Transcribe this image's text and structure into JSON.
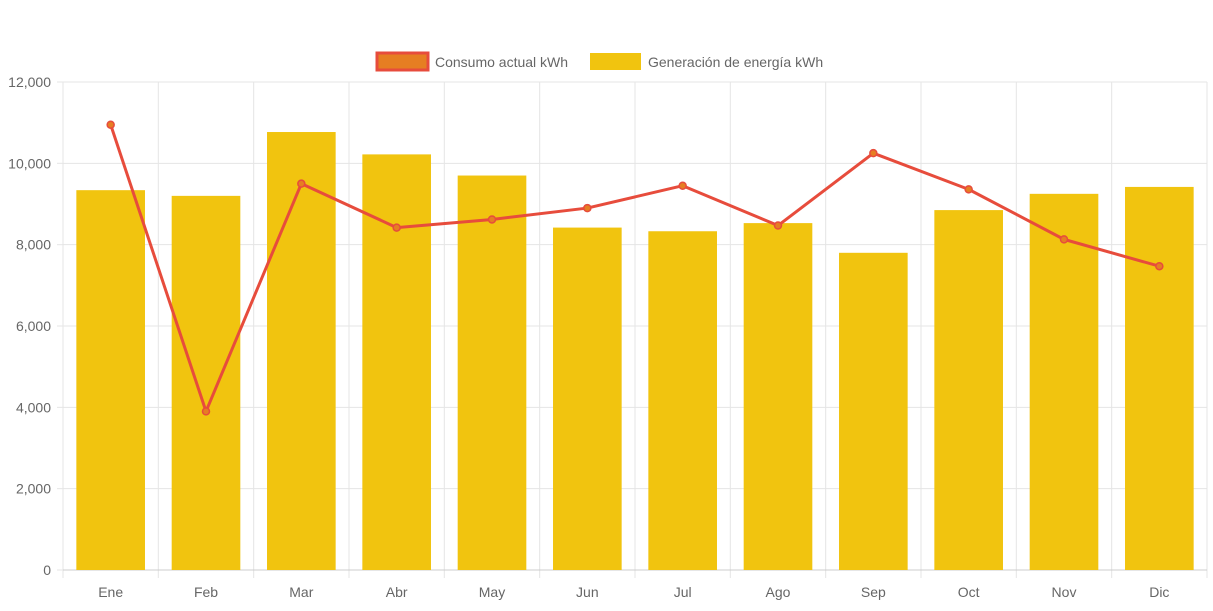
{
  "chart_data": {
    "type": "bar",
    "categories": [
      "Ene",
      "Feb",
      "Mar",
      "Abr",
      "May",
      "Jun",
      "Jul",
      "Ago",
      "Sep",
      "Oct",
      "Nov",
      "Dic"
    ],
    "series": [
      {
        "name": "Consumo actual kWh",
        "type": "line",
        "values": [
          10950,
          3900,
          9500,
          8420,
          8620,
          8900,
          9450,
          8470,
          10250,
          9360,
          8130,
          7470
        ],
        "color": "#e74c3c",
        "point_color": "#e67e22"
      },
      {
        "name": "Generación de energía kWh",
        "type": "bar",
        "values": [
          9340,
          9200,
          10770,
          10220,
          9700,
          8420,
          8330,
          8530,
          7800,
          8850,
          9250,
          9420
        ],
        "color": "#f1c40f"
      }
    ],
    "yticks": [
      "0",
      "2,000",
      "4,000",
      "6,000",
      "8,000",
      "10,000",
      "12,000"
    ],
    "ylim": [
      0,
      12000
    ],
    "xlabel": "",
    "ylabel": "",
    "grid": true,
    "legend_position": "top"
  },
  "colors": {
    "grid": "#e5e5e5",
    "axis": "#cccccc",
    "text": "#666666"
  }
}
